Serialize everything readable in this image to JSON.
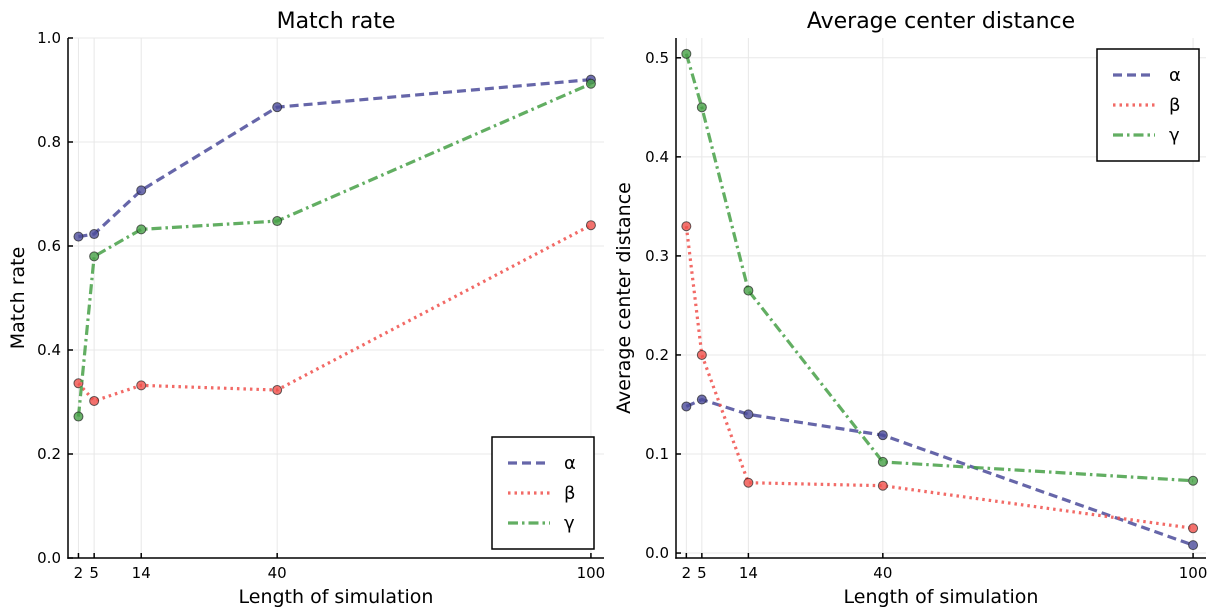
{
  "chart_data": [
    {
      "type": "line",
      "title": "Match rate",
      "xlabel": "Length of simulation",
      "ylabel": "Match rate",
      "x": [
        2,
        5,
        14,
        40,
        100
      ],
      "xticks": [
        "2",
        "5",
        "14",
        "40",
        "100"
      ],
      "xlim": [
        0,
        102.5
      ],
      "ylim": [
        0,
        1.0
      ],
      "yticks": [
        "0.0",
        "0.2",
        "0.4",
        "0.6",
        "0.8",
        "1.0"
      ],
      "ytick_values": [
        0.0,
        0.2,
        0.4,
        0.6,
        0.8,
        1.0
      ],
      "grid": true,
      "legend_position": "bottom-right",
      "series": [
        {
          "name": "α",
          "values": [
            0.618,
            0.623,
            0.707,
            0.867,
            0.92
          ],
          "color": "#4b4b9a",
          "style": "dashed"
        },
        {
          "name": "β",
          "values": [
            0.336,
            0.302,
            0.332,
            0.323,
            0.64
          ],
          "color": "#f0504b",
          "style": "dotted"
        },
        {
          "name": "γ",
          "values": [
            0.272,
            0.58,
            0.632,
            0.648,
            0.912
          ],
          "color": "#46a046",
          "style": "dashdot"
        }
      ]
    },
    {
      "type": "line",
      "title": "Average center distance",
      "xlabel": "Length of simulation",
      "ylabel": "Average center distance",
      "x": [
        2,
        5,
        14,
        40,
        100
      ],
      "xticks": [
        "2",
        "5",
        "14",
        "40",
        "100"
      ],
      "xlim": [
        0,
        102.5
      ],
      "ylim": [
        -0.005,
        0.52
      ],
      "yticks": [
        "0.0",
        "0.1",
        "0.2",
        "0.3",
        "0.4",
        "0.5"
      ],
      "ytick_values": [
        0.0,
        0.1,
        0.2,
        0.3,
        0.4,
        0.5
      ],
      "grid": true,
      "legend_position": "top-right",
      "series": [
        {
          "name": "α",
          "values": [
            0.148,
            0.155,
            0.14,
            0.119,
            0.008
          ],
          "color": "#4b4b9a",
          "style": "dashed"
        },
        {
          "name": "β",
          "values": [
            0.33,
            0.2,
            0.071,
            0.068,
            0.025
          ],
          "color": "#f0504b",
          "style": "dotted"
        },
        {
          "name": "γ",
          "values": [
            0.504,
            0.45,
            0.265,
            0.092,
            0.073
          ],
          "color": "#46a046",
          "style": "dashdot"
        }
      ]
    }
  ]
}
